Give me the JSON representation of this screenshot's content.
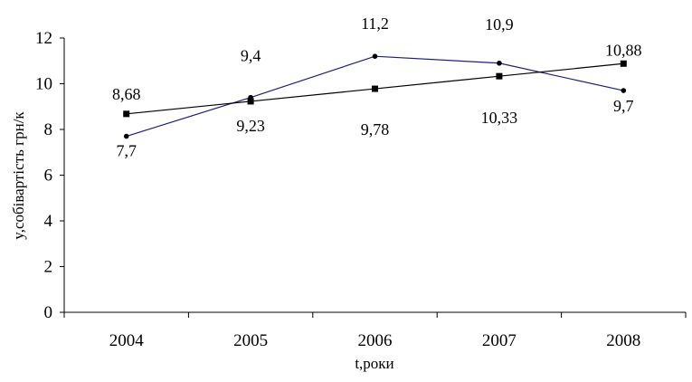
{
  "chart_data": {
    "type": "line",
    "categories": [
      "2004",
      "2005",
      "2006",
      "2007",
      "2008"
    ],
    "xlabel": "t,роки",
    "ylabel": "y,собівартість грн/к",
    "ylim": [
      0,
      12
    ],
    "yticks": [
      "0",
      "2",
      "4",
      "6",
      "8",
      "10",
      "12"
    ],
    "grid": false,
    "legend": "none",
    "series": [
      {
        "values": [
          7.7,
          9.4,
          11.2,
          10.9,
          9.7
        ],
        "labels": [
          "7,7",
          "9,4",
          "11,2",
          "10,9",
          "9,7"
        ],
        "color": "#1f1f7a",
        "marker": "circle"
      },
      {
        "values": [
          8.68,
          9.23,
          9.78,
          10.33,
          10.88
        ],
        "labels": [
          "8,68",
          "9,23",
          "9,78",
          "10,33",
          "10,88"
        ],
        "color": "#000000",
        "marker": "square"
      }
    ]
  }
}
